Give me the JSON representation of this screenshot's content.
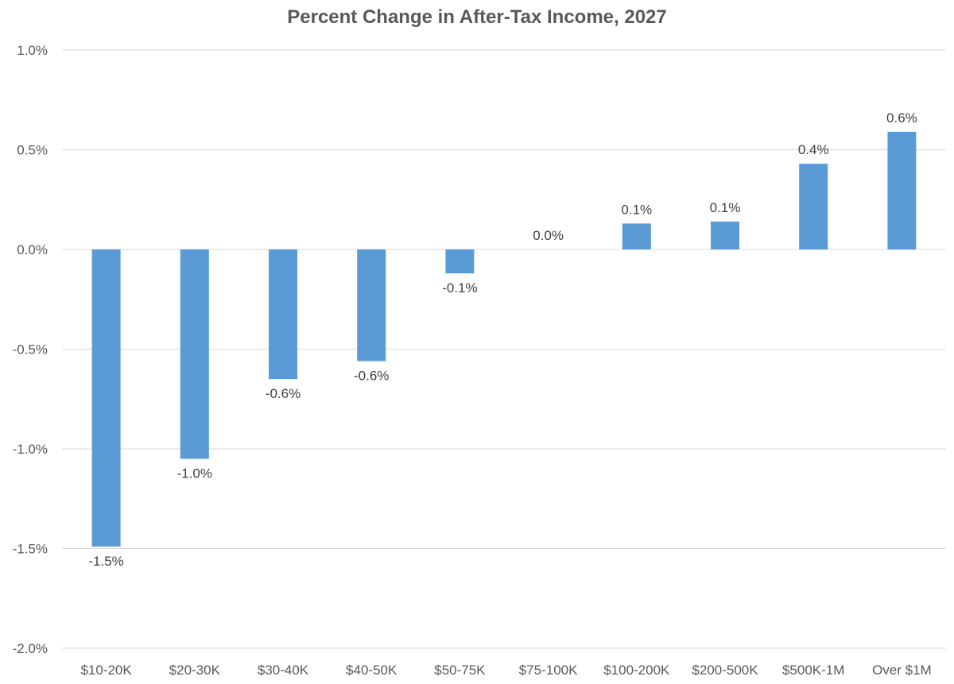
{
  "chart_data": {
    "type": "bar",
    "title": "Percent Change in After-Tax Income, 2027",
    "xlabel": "",
    "ylabel": "",
    "categories": [
      "$10-20K",
      "$20-30K",
      "$30-40K",
      "$40-50K",
      "$50-75K",
      "$75-100K",
      "$100-200K",
      "$200-500K",
      "$500K-1M",
      "Over $1M"
    ],
    "values": [
      -1.49,
      -1.05,
      -0.65,
      -0.56,
      -0.12,
      0.0,
      0.13,
      0.14,
      0.43,
      0.59
    ],
    "data_labels": [
      "-1.5%",
      "-1.0%",
      "-0.6%",
      "-0.6%",
      "-0.1%",
      "0.0%",
      "0.1%",
      "0.1%",
      "0.4%",
      "0.6%"
    ],
    "ylim": [
      -2.0,
      1.0
    ],
    "yticks": [
      1.0,
      0.5,
      0.0,
      -0.5,
      -1.0,
      -1.5,
      -2.0
    ],
    "ytick_labels": [
      "1.0%",
      "0.5%",
      "0.0%",
      "-0.5%",
      "-1.0%",
      "-1.5%",
      "-2.0%"
    ],
    "grid": true,
    "bar_color": "#5b9bd5",
    "legend": "none"
  }
}
